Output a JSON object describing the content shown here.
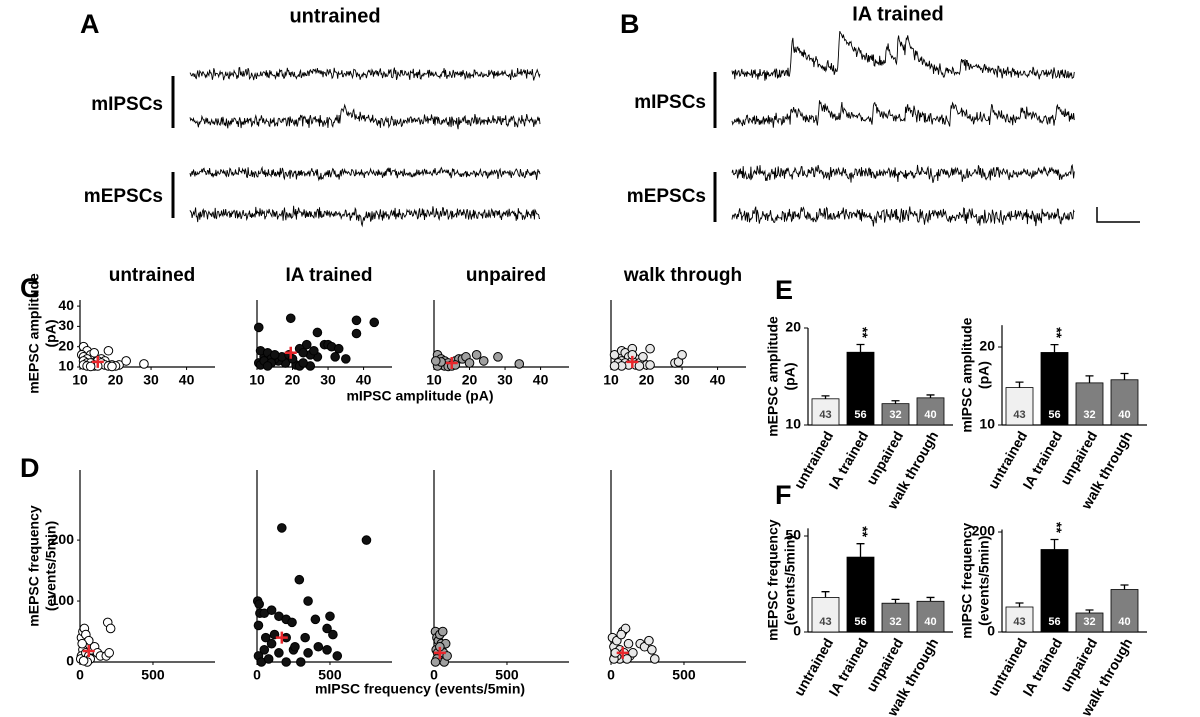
{
  "figure": {
    "A": {
      "letter": "A",
      "title": "untrained",
      "labels": [
        "mIPSCs",
        "mEPSCs"
      ]
    },
    "B": {
      "letter": "B",
      "title": "IA trained",
      "labels": [
        "mIPSCs",
        "mEPSCs"
      ]
    },
    "C": {
      "letter": "C"
    },
    "D": {
      "letter": "D"
    },
    "E": {
      "letter": "E"
    },
    "F": {
      "letter": "F"
    }
  },
  "chart_data": [
    {
      "type": "scatter",
      "title": "untrained",
      "color": "#ffffff",
      "ylabel": [
        "mEPSC amplitude",
        "(pA)"
      ],
      "x": [
        11,
        12,
        10.5,
        13,
        14,
        11,
        12,
        16,
        11,
        15,
        17,
        12,
        13,
        16,
        11,
        14,
        17,
        19,
        21,
        12,
        14,
        15,
        18,
        20,
        13,
        19,
        18,
        23,
        28
      ],
      "values": [
        20,
        18,
        16,
        16,
        17,
        15,
        14,
        14,
        13,
        13,
        13,
        12,
        12,
        12,
        11,
        11,
        11,
        11,
        11,
        10.5,
        10.5,
        10.5,
        10.5,
        10.5,
        10.3,
        10.3,
        18,
        13,
        11.5
      ],
      "mean": {
        "x": 15,
        "y": 12.5
      },
      "mean_color": "#e8262b",
      "xlim": [
        10,
        48
      ],
      "ylim": [
        10,
        43
      ],
      "xticks": [
        10,
        20,
        30,
        40
      ],
      "yticks": [
        10,
        20,
        30,
        40
      ]
    },
    {
      "type": "scatter",
      "title": "IA trained",
      "color": "#111111",
      "xlabel": "mIPSC amplitude  (pA)",
      "x": [
        10.5,
        19.5,
        38,
        43,
        38,
        27,
        29,
        30,
        31,
        33,
        32,
        35,
        27,
        25,
        24,
        22,
        21,
        22,
        25,
        23,
        18,
        16,
        15,
        12,
        11,
        13,
        14,
        10.5,
        11,
        17,
        19,
        20,
        15,
        12,
        14,
        13,
        26,
        23
      ],
      "values": [
        29.5,
        34,
        33,
        32,
        26.5,
        27,
        21,
        21,
        20,
        19,
        15,
        14,
        15,
        16,
        21,
        19,
        11,
        10.5,
        10.5,
        12,
        12,
        13,
        14,
        15,
        18,
        17,
        14,
        12,
        11,
        15,
        16,
        14,
        16,
        13,
        12,
        10.5,
        18,
        17
      ],
      "mean": {
        "x": 19.5,
        "y": 17
      },
      "mean_color": "#e8262b",
      "xlim": [
        10,
        48
      ],
      "ylim": [
        10,
        43
      ],
      "xticks": [
        10,
        20,
        30,
        40
      ]
    },
    {
      "type": "scatter",
      "title": "unpaired",
      "color": "#a0a0a0",
      "x": [
        11,
        12,
        13,
        11,
        14,
        15,
        16,
        17,
        12,
        13,
        14,
        15,
        16,
        11,
        18,
        19,
        22,
        24,
        28,
        34,
        20,
        12,
        10.5
      ],
      "values": [
        16,
        14,
        13,
        12,
        12,
        11,
        13,
        14,
        11,
        10.5,
        10.3,
        10.5,
        11,
        10.5,
        14,
        15,
        16,
        13,
        15,
        11.5,
        12,
        12.5,
        13
      ],
      "mean": {
        "x": 15,
        "y": 12
      },
      "mean_color": "#e8262b",
      "xlim": [
        10,
        48
      ],
      "ylim": [
        10,
        43
      ],
      "xticks": [
        10,
        20,
        30,
        40
      ]
    },
    {
      "type": "scatter",
      "title": "walk through",
      "color": "#e8e8e8",
      "x": [
        11,
        13,
        14,
        16,
        15,
        17,
        13,
        12,
        14,
        16,
        18,
        20,
        21,
        19,
        17,
        15,
        13,
        11,
        21,
        28,
        29,
        30,
        18,
        16
      ],
      "values": [
        16,
        18,
        17,
        19,
        15,
        14,
        13,
        12,
        12,
        13,
        12,
        11,
        11,
        15,
        11,
        11,
        10.5,
        10.5,
        19,
        12,
        12.5,
        16,
        10.5,
        16
      ],
      "mean": {
        "x": 16,
        "y": 12.5
      },
      "mean_color": "#e8262b",
      "xlim": [
        10,
        48
      ],
      "ylim": [
        10,
        43
      ],
      "xticks": [
        10,
        20,
        30,
        40
      ]
    },
    {
      "type": "scatter",
      "color": "#ffffff",
      "ylabel": [
        "mEPSC frequency",
        "(events/5min)"
      ],
      "x": [
        10,
        20,
        30,
        40,
        50,
        60,
        30,
        20,
        10,
        5,
        40,
        60,
        80,
        100,
        120,
        140,
        190,
        210,
        180,
        200,
        15,
        70,
        50,
        25
      ],
      "values": [
        40,
        50,
        55,
        45,
        30,
        35,
        25,
        20,
        10,
        5,
        15,
        10,
        20,
        25,
        15,
        10,
        65,
        55,
        10,
        15,
        30,
        5,
        0,
        2
      ],
      "mean": {
        "x": 60,
        "y": 18
      },
      "mean_color": "#e8262b",
      "xlim": [
        0,
        925
      ],
      "ylim": [
        0,
        315
      ],
      "xticks": [
        0,
        500
      ],
      "yticks": [
        0,
        100,
        200
      ]
    },
    {
      "type": "scatter",
      "color": "#111111",
      "xlabel": "mIPSC frequency (events/5min)",
      "x": [
        5,
        15,
        10,
        20,
        50,
        100,
        150,
        200,
        170,
        290,
        240,
        330,
        350,
        400,
        480,
        500,
        520,
        550,
        750,
        200,
        100,
        50,
        10,
        30,
        80,
        150,
        250,
        300,
        350,
        420,
        480,
        120,
        60,
        200,
        260
      ],
      "values": [
        100,
        95,
        60,
        80,
        80,
        85,
        75,
        70,
        220,
        135,
        65,
        40,
        100,
        70,
        55,
        75,
        45,
        10,
        200,
        40,
        30,
        20,
        10,
        0,
        5,
        15,
        20,
        0,
        15,
        25,
        20,
        45,
        40,
        0,
        25
      ],
      "mean": {
        "x": 170,
        "y": 40
      },
      "mean_color": "#e8262b",
      "xlim": [
        0,
        925
      ],
      "ylim": [
        0,
        315
      ],
      "xticks": [
        0,
        500
      ]
    },
    {
      "type": "scatter",
      "color": "#a0a0a0",
      "x": [
        10,
        20,
        30,
        40,
        50,
        15,
        25,
        35,
        45,
        55,
        65,
        70,
        80,
        20,
        10,
        40,
        90,
        60
      ],
      "values": [
        50,
        40,
        35,
        45,
        30,
        20,
        15,
        10,
        5,
        25,
        15,
        0,
        30,
        5,
        0,
        25,
        10,
        50
      ],
      "mean": {
        "x": 40,
        "y": 15
      },
      "mean_color": "#e8262b",
      "xlim": [
        0,
        925
      ],
      "ylim": [
        0,
        315
      ],
      "xticks": [
        0,
        500
      ]
    },
    {
      "type": "scatter",
      "color": "#e8e8e8",
      "x": [
        10,
        20,
        40,
        60,
        80,
        100,
        120,
        60,
        40,
        20,
        200,
        230,
        260,
        280,
        300,
        130,
        150,
        90,
        110,
        70,
        30
      ],
      "values": [
        40,
        25,
        35,
        20,
        50,
        55,
        30,
        5,
        10,
        5,
        30,
        25,
        35,
        20,
        5,
        10,
        15,
        15,
        5,
        45,
        15
      ],
      "mean": {
        "x": 80,
        "y": 15
      },
      "mean_color": "#e8262b",
      "xlim": [
        0,
        925
      ],
      "ylim": [
        0,
        315
      ],
      "xticks": [
        0,
        500
      ]
    },
    {
      "type": "bar",
      "ylabel": [
        "mEPSC amplitude",
        "(pA)"
      ],
      "categories": [
        "untrained",
        "IA trained",
        "unpaired",
        "walk through"
      ],
      "values": [
        12.7,
        17.5,
        12.2,
        12.8
      ],
      "errors": [
        0.3,
        0.8,
        0.3,
        0.3
      ],
      "n": [
        43,
        56,
        32,
        40
      ],
      "colors": [
        "#f0f0f0",
        "#000000",
        "#7f7f7f",
        "#7f7f7f"
      ],
      "annotation": "**",
      "ylim": [
        10,
        20
      ],
      "yticks": [
        10,
        20
      ]
    },
    {
      "type": "bar",
      "ylabel": [
        "mIPSC amplitude",
        "(pA)"
      ],
      "categories": [
        "untrained",
        "IA trained",
        "unpaired",
        "walk through"
      ],
      "values": [
        14.8,
        19.3,
        15.4,
        15.8
      ],
      "errors": [
        0.7,
        1,
        0.9,
        0.8
      ],
      "n": [
        43,
        56,
        32,
        40
      ],
      "colors": [
        "#f0f0f0",
        "#000000",
        "#7f7f7f",
        "#7f7f7f"
      ],
      "annotation": "**",
      "ylim": [
        10,
        22.8
      ],
      "yticks": [
        10,
        20
      ]
    },
    {
      "type": "bar",
      "ylabel": [
        "mEPSC frequency",
        "(events/5min)"
      ],
      "categories": [
        "untrained",
        "IA trained",
        "unpaired",
        "walk through"
      ],
      "values": [
        18,
        39,
        15,
        16
      ],
      "errors": [
        3,
        7,
        2,
        2
      ],
      "n": [
        43,
        56,
        32,
        40
      ],
      "colors": [
        "#f0f0f0",
        "#000000",
        "#7f7f7f",
        "#7f7f7f"
      ],
      "annotation": "**",
      "ylim": [
        0,
        54
      ],
      "yticks": [
        0,
        50
      ]
    },
    {
      "type": "bar",
      "ylabel": [
        "mIPSC frequency",
        "(events/5min)"
      ],
      "categories": [
        "untrained",
        "IA trained",
        "unpaired",
        "walk through"
      ],
      "values": [
        50,
        165,
        38,
        85
      ],
      "errors": [
        8,
        20,
        6,
        9
      ],
      "n": [
        43,
        56,
        32,
        40
      ],
      "colors": [
        "#f0f0f0",
        "#000000",
        "#7f7f7f",
        "#7f7f7f"
      ],
      "annotation": "**",
      "ylim": [
        0,
        205
      ],
      "yticks": [
        0,
        200
      ]
    }
  ]
}
